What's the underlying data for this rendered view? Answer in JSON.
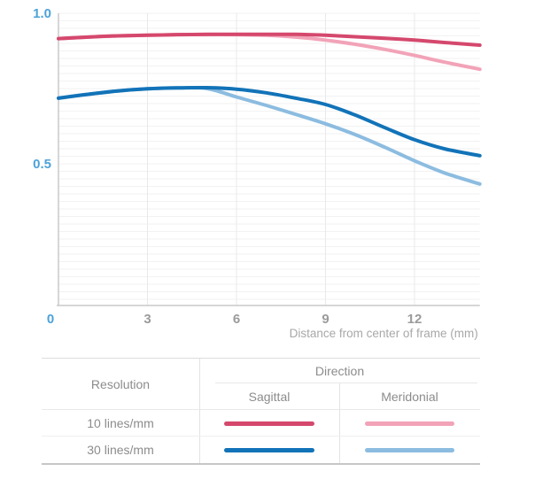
{
  "chart_data": {
    "type": "line",
    "title": "",
    "xlabel": "Distance from center of frame (mm)",
    "ylabel": "",
    "xlim": [
      0,
      14.2
    ],
    "ylim": [
      0.03,
      1.0
    ],
    "x_ticks": [
      0,
      3,
      6,
      9,
      12
    ],
    "y_ticks": [
      1.0,
      0.5
    ],
    "y_tick_labels": [
      "1.0",
      "0.5"
    ],
    "highlighted_tick_color": "#4da2d9",
    "tick_color": "#9b9b9b",
    "grid": "fine horizontal lines every 0.025, light vertical lines at x ticks",
    "legend_position": "table below chart",
    "x": [
      0,
      1,
      2,
      3,
      4,
      5,
      6,
      7,
      8,
      9,
      10,
      11,
      12,
      13,
      14.2
    ],
    "series": [
      {
        "name": "10 lines/mm Sagittal",
        "color": "#d5486d",
        "values": [
          0.916,
          0.921,
          0.925,
          0.927,
          0.929,
          0.93,
          0.93,
          0.93,
          0.93,
          0.927,
          0.922,
          0.917,
          0.911,
          0.903,
          0.894
        ]
      },
      {
        "name": "10 lines/mm Meridonial",
        "color": "#f2a3b8",
        "values": [
          0.916,
          0.921,
          0.925,
          0.927,
          0.929,
          0.929,
          0.929,
          0.927,
          0.921,
          0.911,
          0.897,
          0.88,
          0.86,
          0.838,
          0.814
        ]
      },
      {
        "name": "30 lines/mm Sagittal",
        "color": "#1273b8",
        "values": [
          0.718,
          0.731,
          0.742,
          0.749,
          0.752,
          0.753,
          0.748,
          0.736,
          0.718,
          0.697,
          0.662,
          0.62,
          0.58,
          0.55,
          0.527
        ]
      },
      {
        "name": "30 lines/mm Meridonial",
        "color": "#8cbce0",
        "values": [
          0.718,
          0.731,
          0.742,
          0.749,
          0.752,
          0.75,
          0.722,
          0.694,
          0.664,
          0.633,
          0.597,
          0.555,
          0.51,
          0.47,
          0.433
        ]
      }
    ]
  },
  "legend_table": {
    "resolution_header": "Resolution",
    "direction_header": "Direction",
    "sagittal_header": "Sagittal",
    "meridional_header": "Meridonial",
    "rows": [
      {
        "label": "10 lines/mm",
        "sagittal_color": "#d5486d",
        "meridional_color": "#f2a3b8"
      },
      {
        "label": "30 lines/mm",
        "sagittal_color": "#1273b8",
        "meridional_color": "#8cbce0"
      }
    ]
  }
}
